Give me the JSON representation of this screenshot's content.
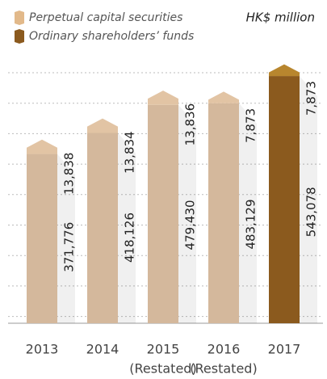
{
  "chart_data": {
    "type": "stacked_bar",
    "unit_label": "HK$ million",
    "categories": [
      "2013",
      "2014",
      "2015",
      "2016",
      "2017"
    ],
    "category_notes": [
      null,
      null,
      "(Restated)",
      "(Restated)",
      null
    ],
    "series": [
      {
        "name": "Ordinary shareholders’ funds",
        "color": "#8b5a1e",
        "bar_colors": [
          "#d4b89c",
          "#d4b89c",
          "#d4b89c",
          "#d4b89c",
          "#8b5a1e"
        ],
        "values": [
          371776,
          418126,
          479430,
          483129,
          543078
        ],
        "value_labels": [
          "371,776",
          "418,126",
          "479,430",
          "483,129",
          "543,078"
        ]
      },
      {
        "name": "Perpetual capital securities",
        "color": "#e2b98a",
        "bar_colors": [
          "#e2c4a4",
          "#e2c4a4",
          "#e2c4a4",
          "#e2c4a4",
          "#b8862e"
        ],
        "values": [
          13838,
          13834,
          13836,
          7873,
          7873
        ],
        "value_labels": [
          "13,838",
          "13,834",
          "13,836",
          "7,873",
          "7,873"
        ]
      }
    ],
    "ylim": [
      0,
      600000
    ],
    "grid": true,
    "legend": "top-left"
  }
}
